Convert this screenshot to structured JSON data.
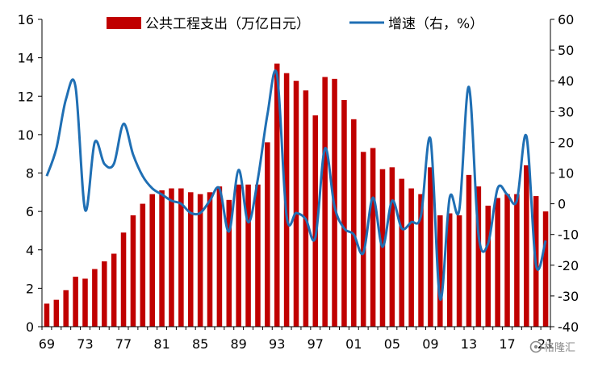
{
  "chart_data": {
    "type": "bar+line",
    "legend": [
      {
        "label": "公共工程支出（万亿日元）",
        "kind": "bar",
        "color": "#c00000"
      },
      {
        "label": "增速（右，%）",
        "kind": "line",
        "color": "#1f6fb4"
      }
    ],
    "x": [
      1969,
      1970,
      1971,
      1972,
      1973,
      1974,
      1975,
      1976,
      1977,
      1978,
      1979,
      1980,
      1981,
      1982,
      1983,
      1984,
      1985,
      1986,
      1987,
      1988,
      1989,
      1990,
      1991,
      1992,
      1993,
      1994,
      1995,
      1996,
      1997,
      1998,
      1999,
      2000,
      2001,
      2002,
      2003,
      2004,
      2005,
      2006,
      2007,
      2008,
      2009,
      2010,
      2011,
      2012,
      2013,
      2014,
      2015,
      2016,
      2017,
      2018,
      2019,
      2020,
      2021
    ],
    "x_tick_labels": [
      "69",
      "73",
      "77",
      "81",
      "85",
      "89",
      "93",
      "97",
      "01",
      "05",
      "09",
      "13",
      "17",
      "21"
    ],
    "x_tick_years": [
      1969,
      1973,
      1977,
      1981,
      1985,
      1989,
      1993,
      1997,
      2001,
      2005,
      2009,
      2013,
      2017,
      2021
    ],
    "left_axis": {
      "ylim": [
        0,
        16
      ],
      "ticks": [
        0,
        2,
        4,
        6,
        8,
        10,
        12,
        14,
        16
      ]
    },
    "right_axis": {
      "ylim": [
        -40,
        60
      ],
      "ticks": [
        -40,
        -30,
        -20,
        -10,
        0,
        10,
        20,
        30,
        40,
        50,
        60
      ]
    },
    "series": [
      {
        "name": "公共工程支出（万亿日元）",
        "type": "bar",
        "axis": "left",
        "color": "#c00000",
        "values": [
          1.2,
          1.4,
          1.9,
          2.6,
          2.5,
          3.0,
          3.4,
          3.8,
          4.9,
          5.8,
          6.4,
          6.9,
          7.1,
          7.2,
          7.2,
          7.0,
          6.9,
          7.0,
          7.3,
          6.6,
          7.4,
          7.4,
          7.4,
          9.6,
          13.7,
          13.2,
          12.8,
          12.3,
          11.0,
          13.0,
          12.9,
          11.8,
          10.8,
          9.1,
          9.3,
          8.2,
          8.3,
          7.7,
          7.2,
          6.9,
          8.3,
          5.8,
          5.9,
          5.8,
          7.9,
          7.3,
          6.3,
          6.7,
          6.9,
          6.9,
          8.4,
          6.8,
          6.0
        ]
      },
      {
        "name": "增速（右，%）",
        "type": "line",
        "axis": "right",
        "color": "#1f6fb4",
        "values": [
          9,
          18,
          34,
          38,
          -2,
          20,
          13,
          13,
          26,
          16,
          9,
          5,
          3,
          1,
          0,
          -3,
          -3,
          1,
          5,
          -9,
          11,
          -6,
          8,
          29,
          42,
          -4,
          -3,
          -5,
          -11,
          18,
          -1,
          -8,
          -10,
          -16,
          2,
          -14,
          1,
          -8,
          -6,
          -4,
          21,
          -31,
          2,
          -2,
          38,
          -10,
          -13,
          5,
          3,
          1,
          22,
          -20,
          -12
        ]
      }
    ],
    "grid": false,
    "legend_position": "top"
  },
  "watermark": "格隆汇"
}
